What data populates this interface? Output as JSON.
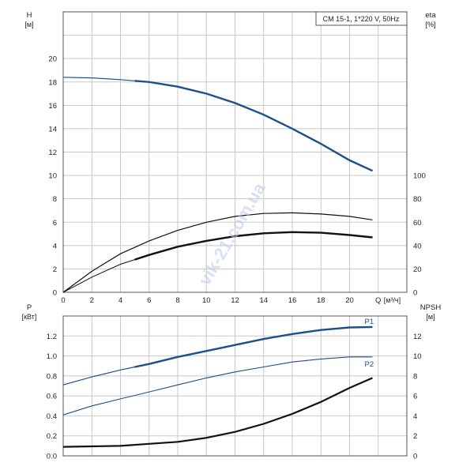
{
  "chart_data": [
    {
      "type": "line",
      "panel": "head",
      "legend_box": "CM 15-1, 1*220 V, 50Hz",
      "y_left_label": "H",
      "y_left_unit": "[м]",
      "y_right_label": "eta",
      "y_right_unit": "[%]",
      "xlabel": "Q",
      "xunit": "[м³/ч]",
      "xlim": [
        0,
        24
      ],
      "x_ticks": [
        "0",
        "2",
        "4",
        "6",
        "8",
        "10",
        "12",
        "14",
        "16",
        "18",
        "20"
      ],
      "ylim_left": [
        0,
        24
      ],
      "y_left_ticks": [
        "0",
        "2",
        "4",
        "6",
        "8",
        "10",
        "12",
        "14",
        "16",
        "18",
        "20"
      ],
      "y_right_ticks": [
        "0",
        "20",
        "40",
        "60",
        "80",
        "100"
      ],
      "grid": true,
      "series": [
        {
          "axis": "left",
          "x": [
            0,
            2,
            4,
            5,
            6,
            8,
            10,
            12,
            14,
            16,
            18,
            20,
            21.6
          ],
          "y": [
            18.4,
            18.35,
            18.2,
            18.1,
            18.0,
            17.6,
            17.0,
            16.2,
            15.2,
            14.0,
            12.7,
            11.3,
            10.4
          ]
        },
        {
          "axis": "right",
          "x": [
            0,
            2,
            4,
            6,
            8,
            10,
            12,
            14,
            16,
            18,
            20,
            21.6
          ],
          "y": [
            0,
            18,
            33,
            44,
            53,
            60,
            65,
            67.5,
            68,
            67,
            65,
            62
          ]
        },
        {
          "axis": "right",
          "x": [
            0,
            2,
            4,
            5,
            6,
            8,
            10,
            12,
            14,
            16,
            18,
            20,
            21.6
          ],
          "y": [
            0,
            13,
            24,
            28,
            32,
            39,
            44,
            48,
            50.5,
            51.5,
            51,
            49,
            47
          ]
        }
      ]
    },
    {
      "type": "line",
      "panel": "power",
      "y_left_label": "P",
      "y_left_unit": "[кВт]",
      "y_right_label": "NPSH",
      "y_right_unit": "[м]",
      "xlim": [
        0,
        24
      ],
      "ylim_left": [
        0,
        1.4
      ],
      "y_left_ticks": [
        "0.0",
        "0.2",
        "0.4",
        "0.6",
        "0.8",
        "1.0",
        "1.2"
      ],
      "y_right_ticks": [
        "0",
        "2",
        "4",
        "6",
        "8",
        "10",
        "12"
      ],
      "grid": true,
      "series": [
        {
          "name": "P1",
          "axis": "left",
          "x": [
            0,
            2,
            4,
            5,
            6,
            8,
            10,
            12,
            14,
            16,
            18,
            20,
            21.6
          ],
          "y": [
            0.71,
            0.79,
            0.86,
            0.89,
            0.92,
            0.99,
            1.05,
            1.11,
            1.17,
            1.22,
            1.26,
            1.285,
            1.29
          ]
        },
        {
          "name": "P2",
          "axis": "left",
          "x": [
            0,
            2,
            4,
            6,
            8,
            10,
            12,
            14,
            16,
            18,
            20,
            21.6
          ],
          "y": [
            0.41,
            0.5,
            0.57,
            0.64,
            0.71,
            0.78,
            0.84,
            0.89,
            0.94,
            0.97,
            0.99,
            0.99
          ]
        },
        {
          "axis": "right",
          "x": [
            0,
            2,
            4,
            6,
            8,
            10,
            12,
            14,
            16,
            18,
            20,
            21.6
          ],
          "y": [
            0.9,
            0.95,
            1.0,
            1.2,
            1.4,
            1.8,
            2.4,
            3.2,
            4.2,
            5.4,
            6.8,
            7.8
          ]
        }
      ]
    }
  ],
  "watermark": "vik-21.com.ua",
  "colors": {
    "blue": "#1f4e8c",
    "black": "#111111",
    "grid": "#c8c8c8",
    "p_label": "#1f4e8c"
  }
}
